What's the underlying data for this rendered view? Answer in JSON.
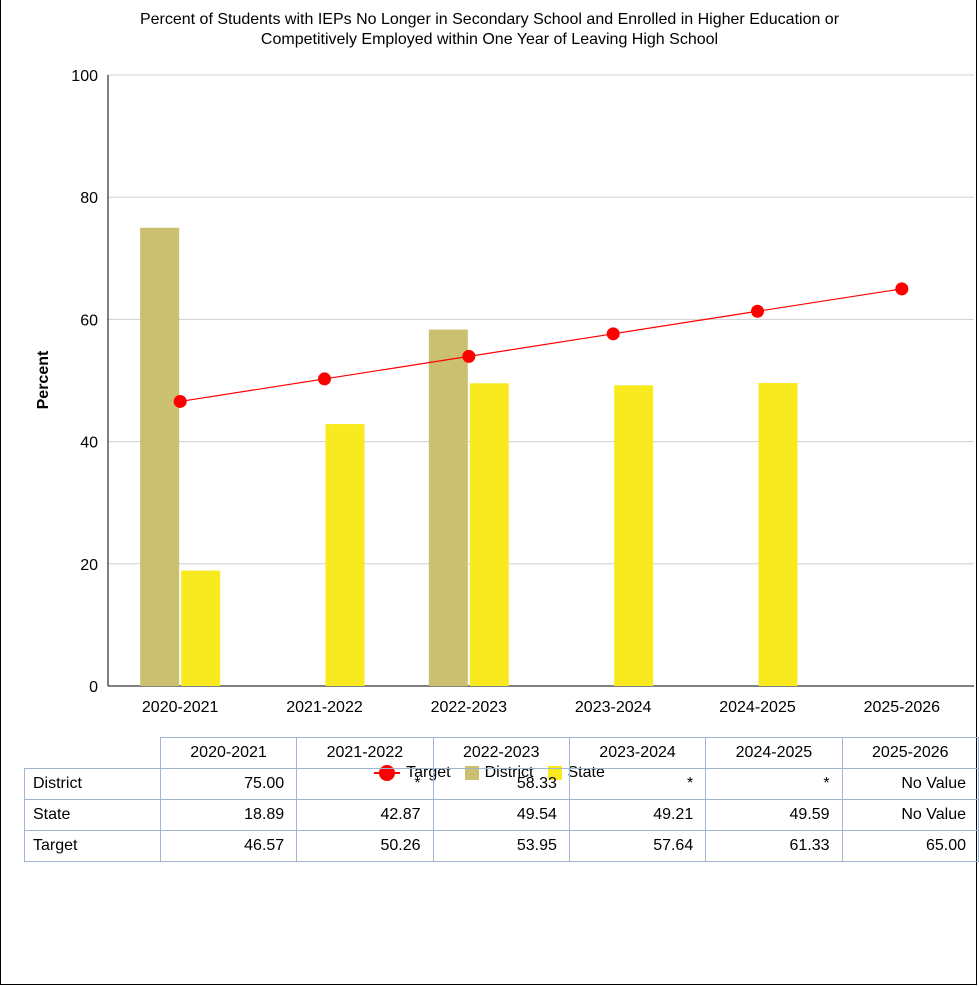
{
  "chart_data": {
    "type": "bar",
    "title": "Percent of Students with IEPs No Longer in Secondary School and Enrolled in Higher Education or Competitively Employed within One Year of Leaving High School",
    "title_lines": [
      "Percent of Students with IEPs No Longer in Secondary School and Enrolled in Higher Education or",
      "Competitively Employed within One Year of Leaving High School"
    ],
    "xlabel": "",
    "ylabel": "Percent",
    "ylim": [
      0,
      100
    ],
    "yticks": [
      0,
      20,
      40,
      60,
      80,
      100
    ],
    "grid": true,
    "legend_position": "bottom",
    "categories": [
      "2020-2021",
      "2021-2022",
      "2022-2023",
      "2023-2024",
      "2024-2025",
      "2025-2026"
    ],
    "series": [
      {
        "name": "District",
        "type": "bar",
        "color": "#cbbf70",
        "values": [
          75.0,
          null,
          58.33,
          null,
          null,
          null
        ]
      },
      {
        "name": "State",
        "type": "bar",
        "color": "#f8ea1e",
        "values": [
          18.89,
          42.87,
          49.54,
          49.21,
          49.59,
          null
        ]
      },
      {
        "name": "Target",
        "type": "line",
        "color": "#ff0000",
        "values": [
          46.57,
          50.26,
          53.95,
          57.64,
          61.33,
          65.0
        ]
      }
    ]
  },
  "legend": {
    "target": "Target",
    "district": "District",
    "state": "State"
  },
  "table": {
    "header": [
      "2020-2021",
      "2021-2022",
      "2022-2023",
      "2023-2024",
      "2024-2025",
      "2025-2026"
    ],
    "rows": [
      {
        "label": "District",
        "cells": [
          "75.00",
          "*",
          "58.33",
          "*",
          "*",
          "No Value"
        ]
      },
      {
        "label": "State",
        "cells": [
          "18.89",
          "42.87",
          "49.54",
          "49.21",
          "49.59",
          "No Value"
        ]
      },
      {
        "label": "Target",
        "cells": [
          "46.57",
          "50.26",
          "53.95",
          "57.64",
          "61.33",
          "65.00"
        ]
      }
    ]
  }
}
